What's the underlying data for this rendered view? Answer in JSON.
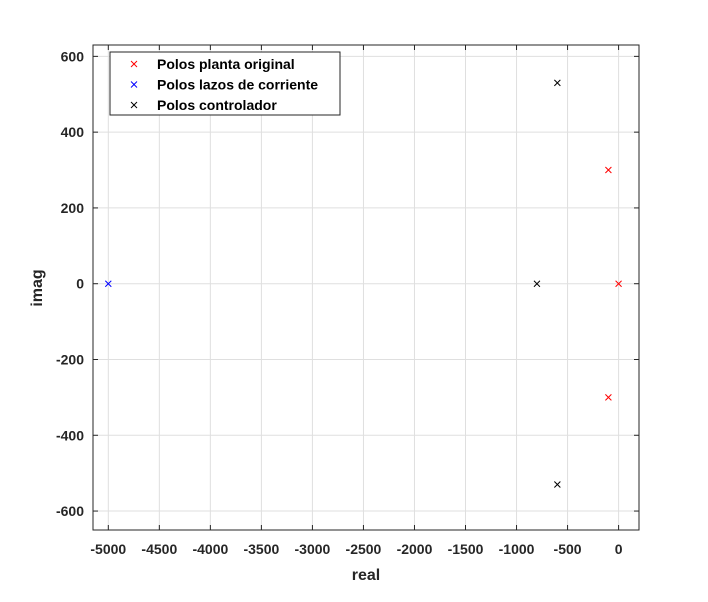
{
  "chart_data": {
    "type": "scatter",
    "xlabel": "real",
    "ylabel": "imag",
    "xlim": [
      -5150,
      200
    ],
    "ylim": [
      -650,
      630
    ],
    "xticks": [
      -5000,
      -4500,
      -4000,
      -3500,
      -3000,
      -2500,
      -2000,
      -1500,
      -1000,
      -500,
      0
    ],
    "yticks": [
      -600,
      -400,
      -200,
      0,
      200,
      400,
      600
    ],
    "grid": true,
    "legend_position": "top-left",
    "marker": "x",
    "series": [
      {
        "name": "Polos planta original",
        "color": "#ff0000",
        "points": [
          [
            0,
            0
          ],
          [
            -100,
            300
          ],
          [
            -100,
            -300
          ]
        ]
      },
      {
        "name": "Polos lazos de corriente",
        "color": "#0000ff",
        "points": [
          [
            -5000,
            0
          ]
        ]
      },
      {
        "name": "Polos controlador",
        "color": "#000000",
        "points": [
          [
            -800,
            0
          ],
          [
            -600,
            530
          ],
          [
            -600,
            -530
          ]
        ]
      }
    ]
  }
}
